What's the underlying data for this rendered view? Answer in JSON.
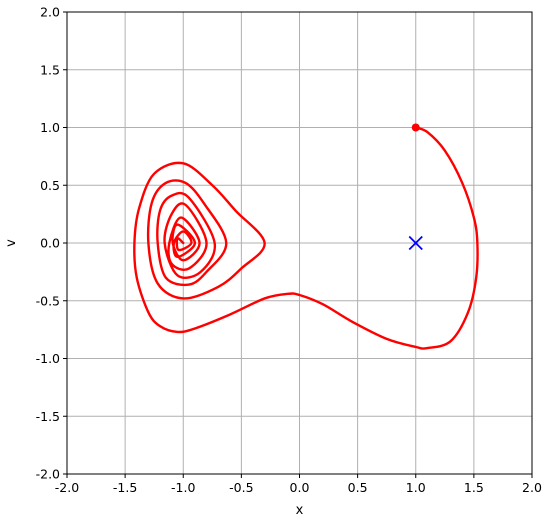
{
  "chart_data": {
    "type": "line",
    "title": "",
    "xlabel": "x",
    "ylabel": "v",
    "xlim": [
      -2.0,
      2.0
    ],
    "ylim": [
      -2.0,
      2.0
    ],
    "xticks": [
      "-2.0",
      "-1.5",
      "-1.0",
      "-0.5",
      "0.0",
      "0.5",
      "1.0",
      "1.5",
      "2.0"
    ],
    "yticks": [
      "-2.0",
      "-1.5",
      "-1.0",
      "-0.5",
      "0.0",
      "0.5",
      "1.0",
      "1.5",
      "2.0"
    ],
    "grid": true,
    "colors": {
      "trajectory": "#ff0000",
      "equilibrium_marker": "#0000ff",
      "start_marker": "#ff0000",
      "grid": "#b0b0b0"
    },
    "series": [
      {
        "marker": "line",
        "x": [
          1.0,
          1.1,
          1.25,
          1.4,
          1.5,
          1.53,
          1.52,
          1.45,
          1.3,
          1.1,
          1.0,
          0.75,
          0.45,
          0.2,
          0.0,
          -0.1,
          -0.3,
          -0.6,
          -0.9,
          -1.05,
          -1.2,
          -1.3,
          -1.4,
          -1.42,
          -1.38,
          -1.25,
          -1.0,
          -0.75,
          -0.55,
          -0.3,
          -0.5,
          -0.7,
          -1.0,
          -1.22,
          -1.3,
          -1.27,
          -1.15,
          -0.98,
          -0.82,
          -0.63,
          -0.8,
          -0.95,
          -1.15,
          -1.22,
          -1.2,
          -1.1,
          -0.95,
          -0.73,
          -0.85,
          -1.05,
          -1.16,
          -1.1,
          -0.98,
          -0.8,
          -0.95,
          -1.1,
          -1.12,
          -1.02,
          -0.86,
          -1.0,
          -1.09,
          -1.05,
          -0.9,
          -1.05,
          -1.08,
          -1.0,
          -0.93,
          -1.04,
          -1.05,
          -1.0
        ],
        "y": [
          1.0,
          0.96,
          0.8,
          0.52,
          0.22,
          0.0,
          -0.3,
          -0.6,
          -0.85,
          -0.91,
          -0.9,
          -0.83,
          -0.68,
          -0.53,
          -0.45,
          -0.44,
          -0.48,
          -0.62,
          -0.74,
          -0.77,
          -0.72,
          -0.6,
          -0.3,
          0.0,
          0.3,
          0.6,
          0.69,
          0.5,
          0.28,
          0.0,
          -0.22,
          -0.38,
          -0.48,
          -0.35,
          0.0,
          0.35,
          0.52,
          0.52,
          0.34,
          0.0,
          -0.25,
          -0.36,
          -0.3,
          0.0,
          0.28,
          0.41,
          0.39,
          0.0,
          -0.25,
          -0.28,
          0.0,
          0.25,
          0.33,
          0.0,
          -0.22,
          -0.18,
          0.0,
          0.22,
          0.0,
          -0.15,
          0.0,
          0.16,
          0.0,
          -0.12,
          0.0,
          0.1,
          0.0,
          -0.06,
          0.04,
          0.0
        ]
      }
    ],
    "markers": [
      {
        "kind": "start-point",
        "symbol": "circle",
        "x": 1.0,
        "y": 1.0
      },
      {
        "kind": "equilibrium",
        "symbol": "x",
        "x": 1.0,
        "y": 0.0
      }
    ]
  }
}
